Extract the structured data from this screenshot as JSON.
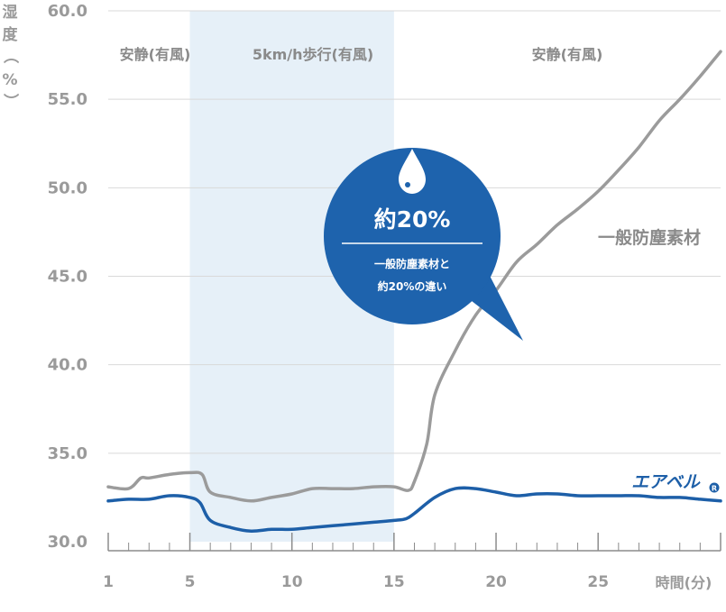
{
  "chart_data": {
    "type": "line",
    "ylabel_chars": [
      "湿",
      "度",
      "（",
      "%",
      "）"
    ],
    "xlabel": "時間(分)",
    "ylim": [
      30,
      60
    ],
    "xlim": [
      1,
      31
    ],
    "y_ticks": [
      "30.0",
      "35.0",
      "40.0",
      "45.0",
      "50.0",
      "55.0",
      "60.0"
    ],
    "x_ticks": [
      "1",
      "5",
      "10",
      "15",
      "20",
      "25"
    ],
    "grid": "horizontal",
    "phases": [
      {
        "label": "安静(有風)",
        "x_start": 1,
        "x_end": 5,
        "highlight": false
      },
      {
        "label": "5km/h歩行(有風)",
        "x_start": 5,
        "x_end": 15,
        "highlight": true
      },
      {
        "label": "安静(有風)",
        "x_start": 15,
        "x_end": 31,
        "highlight": false
      }
    ],
    "series": [
      {
        "name": "一般防塵素材",
        "color": "#9b9b9b",
        "x": [
          1,
          2,
          2.6,
          3,
          4,
          5,
          5.6,
          6,
          7,
          8,
          9,
          10,
          11,
          12,
          13,
          14,
          15,
          15.7,
          16,
          16.6,
          17,
          18,
          19,
          20,
          21,
          22,
          23,
          24,
          25,
          26,
          27,
          28,
          29,
          30,
          31
        ],
        "y": [
          33.1,
          33.0,
          33.6,
          33.6,
          33.8,
          33.9,
          33.8,
          32.8,
          32.5,
          32.3,
          32.5,
          32.7,
          33.0,
          33.0,
          33.0,
          33.1,
          33.1,
          32.9,
          33.4,
          35.5,
          38.3,
          40.8,
          42.8,
          44.2,
          45.8,
          46.8,
          47.9,
          48.8,
          49.8,
          51.0,
          52.3,
          53.8,
          55.0,
          56.3,
          57.7
        ]
      },
      {
        "name": "エアベル",
        "color": "#1d5fa8",
        "x": [
          1,
          2,
          3,
          4,
          5,
          5.5,
          6,
          7,
          8,
          9,
          10,
          11,
          12,
          13,
          14,
          15,
          15.6,
          16,
          17,
          18,
          19,
          20,
          21,
          22,
          23,
          24,
          25,
          26,
          27,
          28,
          29,
          30,
          31
        ],
        "y": [
          32.3,
          32.4,
          32.4,
          32.6,
          32.5,
          32.2,
          31.2,
          30.8,
          30.6,
          30.7,
          30.7,
          30.8,
          30.9,
          31.0,
          31.1,
          31.2,
          31.3,
          31.6,
          32.5,
          33.0,
          33.0,
          32.8,
          32.6,
          32.7,
          32.7,
          32.6,
          32.6,
          32.6,
          32.6,
          32.5,
          32.5,
          32.4,
          32.3
        ]
      }
    ],
    "callout": {
      "value": "約20%",
      "line1": "一般防塵素材と",
      "line2": "約20%の違い",
      "icon": "water-drop-icon"
    },
    "colors": {
      "highlight": "#e6f0f8",
      "callout": "#1e63ad",
      "grid": "#d9d9d9",
      "axis": "#8c8c8c"
    }
  }
}
